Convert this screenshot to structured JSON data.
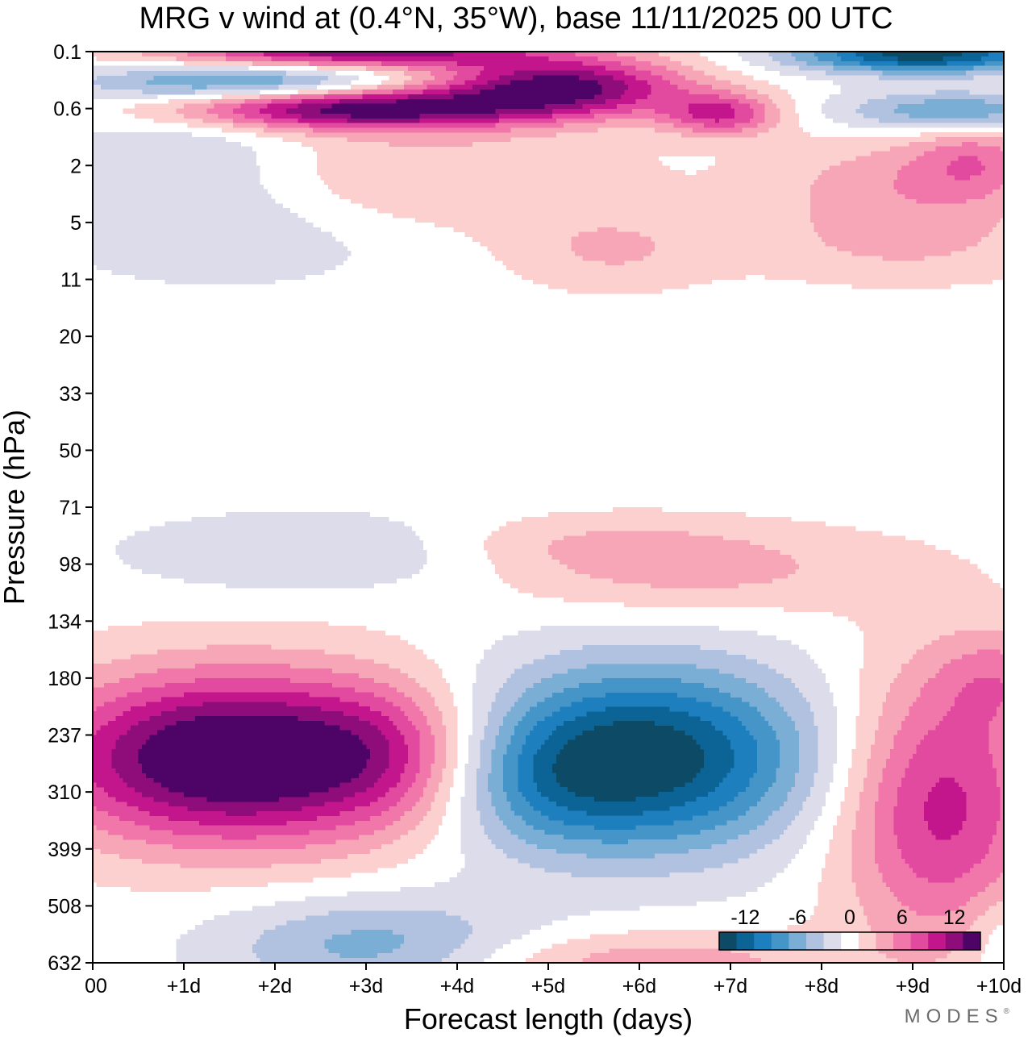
{
  "title": "MRG v wind at (0.4°N, 35°W),  base 11/11/2025  00 UTC",
  "brand": "MODES",
  "brand_mark": "®",
  "chart_data": {
    "type": "heatmap",
    "title": "MRG v wind at (0.4°N, 35°W),  base 11/11/2025  00 UTC",
    "xlabel": "Forecast length (days)",
    "ylabel": "Pressure (hPa)",
    "x_tick_labels": [
      "00",
      "+1d",
      "+2d",
      "+3d",
      "+4d",
      "+5d",
      "+6d",
      "+7d",
      "+8d",
      "+9d",
      "+10d"
    ],
    "xlim": [
      0,
      10
    ],
    "y_tick_labels": [
      "0.1",
      "0.6",
      "2",
      "5",
      "11",
      "20",
      "33",
      "50",
      "71",
      "98",
      "134",
      "180",
      "237",
      "310",
      "399",
      "508",
      "632"
    ],
    "y_scale": "log-pressure (levels equally spaced)",
    "ylim": [
      632,
      0.1
    ],
    "colorbar": {
      "tick_labels": [
        "-12",
        "-6",
        "0",
        "6",
        "12"
      ],
      "levels": [
        -15,
        -13,
        -11,
        -9,
        -7,
        -5,
        -3,
        -1,
        1,
        3,
        5,
        7,
        9,
        11,
        13,
        15
      ],
      "colors": [
        "#0d4a66",
        "#0b6396",
        "#1d7fbe",
        "#4595c9",
        "#7aaed4",
        "#b0c2df",
        "#dcdceb",
        "#ffffff",
        "#fbd0cf",
        "#f7a6b8",
        "#f177aa",
        "#e14a9e",
        "#c3168c",
        "#8e0d7b",
        "#4e0366"
      ],
      "placement": "bottom-right inside plot"
    },
    "features": [
      {
        "label": "positive maximum",
        "x_days": [
          0,
          4.1
        ],
        "pressure_hPa": [
          180,
          399
        ],
        "peak_v": 14
      },
      {
        "label": "negative minimum",
        "x_days": [
          4.5,
          8.2
        ],
        "pressure_hPa": [
          134,
          508
        ],
        "peak_v": -13
      },
      {
        "label": "positive upper layer",
        "x_days": [
          0.5,
          8
        ],
        "pressure_hPa": [
          0.1,
          1
        ],
        "peak_v": 14
      },
      {
        "label": "negative upper layer",
        "x_days": [
          7.5,
          10
        ],
        "pressure_hPa": [
          0.1,
          1
        ],
        "peak_v": -14
      },
      {
        "label": "positive secondary maximum",
        "x_days": [
          8.5,
          10
        ],
        "pressure_hPa": [
          134,
          508
        ],
        "peak_v": 9
      }
    ]
  },
  "colors": {
    "positive_max": "#4e0366",
    "negative_min": "#0d4a66",
    "zero": "#ffffff",
    "frame": "#000000"
  }
}
